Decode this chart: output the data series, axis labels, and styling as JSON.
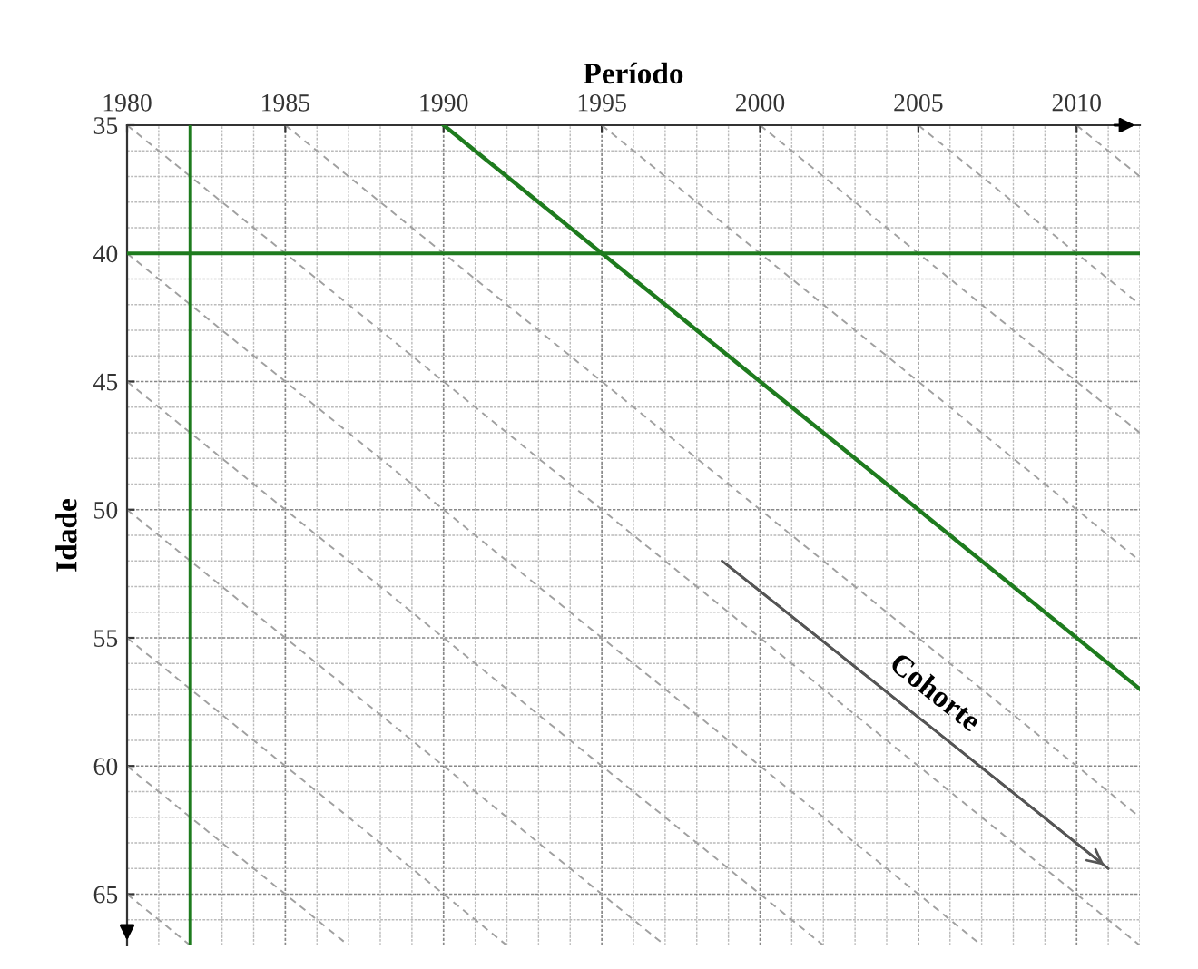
{
  "chart_data": {
    "type": "line",
    "xlabel": "Período",
    "ylabel": "Idade",
    "xlim": [
      1980,
      2012
    ],
    "ylim": [
      67,
      35
    ],
    "xticks": [
      1980,
      1985,
      1990,
      1995,
      2000,
      2005,
      2010
    ],
    "yticks": [
      35,
      40,
      45,
      50,
      55,
      60,
      65
    ],
    "grid": true,
    "marker": "none",
    "series": [
      {
        "color": "#a0a0a0",
        "line_style": "dashed",
        "x": [
          1980,
          1982
        ],
        "values": [
          65,
          67
        ]
      },
      {
        "color": "#a0a0a0",
        "line_style": "dashed",
        "x": [
          1980,
          1987
        ],
        "values": [
          60,
          67
        ]
      },
      {
        "color": "#a0a0a0",
        "line_style": "dashed",
        "x": [
          1980,
          1992
        ],
        "values": [
          55,
          67
        ]
      },
      {
        "color": "#a0a0a0",
        "line_style": "dashed",
        "x": [
          1980,
          1997
        ],
        "values": [
          50,
          67
        ]
      },
      {
        "color": "#a0a0a0",
        "line_style": "dashed",
        "x": [
          1980,
          2002
        ],
        "values": [
          45,
          67
        ]
      },
      {
        "color": "#a0a0a0",
        "line_style": "dashed",
        "x": [
          1980,
          2007
        ],
        "values": [
          40,
          67
        ]
      },
      {
        "color": "#a0a0a0",
        "line_style": "dashed",
        "x": [
          1980,
          2012
        ],
        "values": [
          35,
          67
        ]
      },
      {
        "color": "#a0a0a0",
        "line_style": "dashed",
        "x": [
          1985,
          2012
        ],
        "values": [
          35,
          62
        ]
      },
      {
        "color": "#a0a0a0",
        "line_style": "dashed",
        "x": [
          1995,
          2012
        ],
        "values": [
          35,
          52
        ]
      },
      {
        "color": "#a0a0a0",
        "line_style": "dashed",
        "x": [
          2000,
          2012
        ],
        "values": [
          35,
          47
        ]
      },
      {
        "color": "#a0a0a0",
        "line_style": "dashed",
        "x": [
          2005,
          2012
        ],
        "values": [
          35,
          42
        ]
      },
      {
        "color": "#a0a0a0",
        "line_style": "dashed",
        "x": [
          2010,
          2012
        ],
        "values": [
          35,
          37
        ]
      },
      {
        "color": "#1e7b1e",
        "line_style": "solid",
        "x": [
          1990,
          2012
        ],
        "values": [
          35,
          57
        ]
      },
      {
        "color": "#555555",
        "line_style": "solid",
        "x": [
          1998.8,
          2011
        ],
        "values": [
          52,
          64
        ]
      }
    ],
    "ref_lines": [
      {
        "axis": "x",
        "value": 1982,
        "color": "#1e7b1e"
      },
      {
        "axis": "y",
        "value": 40,
        "color": "#1e7b1e"
      }
    ],
    "annotations": [
      "Cohorte"
    ]
  }
}
